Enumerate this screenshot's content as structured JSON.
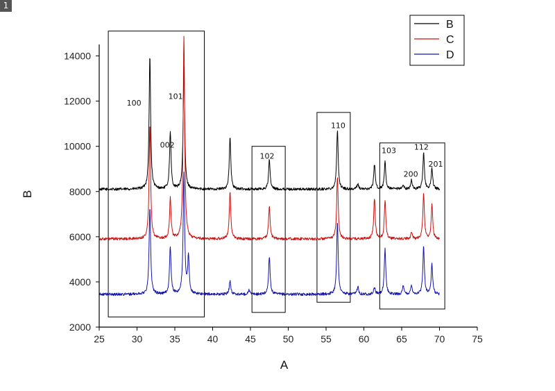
{
  "badge": "1",
  "chart_data": {
    "type": "line",
    "xlabel": "A",
    "ylabel": "B",
    "xlim": [
      25,
      75
    ],
    "ylim": [
      2000,
      15000
    ],
    "x_ticks": [
      25,
      30,
      35,
      40,
      45,
      50,
      55,
      60,
      65,
      70,
      75
    ],
    "y_ticks": [
      2000,
      4000,
      6000,
      8000,
      10000,
      12000,
      14000
    ],
    "x_range_data": [
      25,
      70
    ],
    "legend": {
      "position": "top-right"
    },
    "series": [
      {
        "name": "B",
        "color": "#000000",
        "baseline": 8100,
        "noise": 60,
        "peaks": [
          {
            "x": 31.7,
            "height": 5900
          },
          {
            "x": 34.4,
            "height": 2500
          },
          {
            "x": 36.2,
            "height": 5400
          },
          {
            "x": 42.3,
            "height": 2300
          },
          {
            "x": 47.5,
            "height": 1300
          },
          {
            "x": 56.5,
            "height": 2600
          },
          {
            "x": 59.2,
            "height": 250
          },
          {
            "x": 61.4,
            "height": 1100
          },
          {
            "x": 62.8,
            "height": 1200
          },
          {
            "x": 65.2,
            "height": 200
          },
          {
            "x": 66.3,
            "height": 400
          },
          {
            "x": 67.9,
            "height": 1600
          },
          {
            "x": 69.0,
            "height": 900
          }
        ]
      },
      {
        "name": "C",
        "color": "#cc1010",
        "baseline": 5900,
        "noise": 60,
        "peaks": [
          {
            "x": 31.7,
            "height": 5100
          },
          {
            "x": 34.4,
            "height": 1800
          },
          {
            "x": 36.2,
            "height": 9000
          },
          {
            "x": 42.3,
            "height": 2100
          },
          {
            "x": 47.5,
            "height": 1500
          },
          {
            "x": 56.5,
            "height": 2800
          },
          {
            "x": 61.4,
            "height": 1800
          },
          {
            "x": 62.8,
            "height": 1700
          },
          {
            "x": 66.3,
            "height": 300
          },
          {
            "x": 67.9,
            "height": 2000
          },
          {
            "x": 69.0,
            "height": 1500
          }
        ]
      },
      {
        "name": "D",
        "color": "#1414aa",
        "baseline": 3450,
        "noise": 60,
        "peaks": [
          {
            "x": 31.7,
            "height": 3900
          },
          {
            "x": 34.4,
            "height": 2100
          },
          {
            "x": 36.2,
            "height": 5300
          },
          {
            "x": 36.8,
            "height": 1600
          },
          {
            "x": 42.3,
            "height": 600
          },
          {
            "x": 44.8,
            "height": 200
          },
          {
            "x": 47.5,
            "height": 1700
          },
          {
            "x": 56.5,
            "height": 3200
          },
          {
            "x": 59.2,
            "height": 350
          },
          {
            "x": 61.4,
            "height": 300
          },
          {
            "x": 62.8,
            "height": 2000
          },
          {
            "x": 65.2,
            "height": 350
          },
          {
            "x": 66.3,
            "height": 400
          },
          {
            "x": 67.9,
            "height": 2100
          },
          {
            "x": 69.0,
            "height": 1300
          }
        ]
      }
    ],
    "annotations": [
      {
        "text": "100",
        "x": 29.6,
        "y": 11800
      },
      {
        "text": "101",
        "x": 35.1,
        "y": 12100
      },
      {
        "text": "002",
        "x": 34.0,
        "y": 9950
      },
      {
        "text": "102",
        "x": 47.2,
        "y": 9450
      },
      {
        "text": "110",
        "x": 56.6,
        "y": 10800
      },
      {
        "text": "103",
        "x": 63.3,
        "y": 9700
      },
      {
        "text": "112",
        "x": 67.6,
        "y": 9850
      },
      {
        "text": "200",
        "x": 66.2,
        "y": 8650
      },
      {
        "text": "201",
        "x": 69.5,
        "y": 9100
      }
    ],
    "boxes": [
      {
        "x0": 26.2,
        "x1": 38.9,
        "y0": 2450,
        "y1": 15100
      },
      {
        "x0": 45.2,
        "x1": 49.6,
        "y0": 2650,
        "y1": 10000
      },
      {
        "x0": 53.8,
        "x1": 58.2,
        "y0": 3100,
        "y1": 11500
      },
      {
        "x0": 62.1,
        "x1": 70.7,
        "y0": 2800,
        "y1": 10150
      }
    ]
  }
}
